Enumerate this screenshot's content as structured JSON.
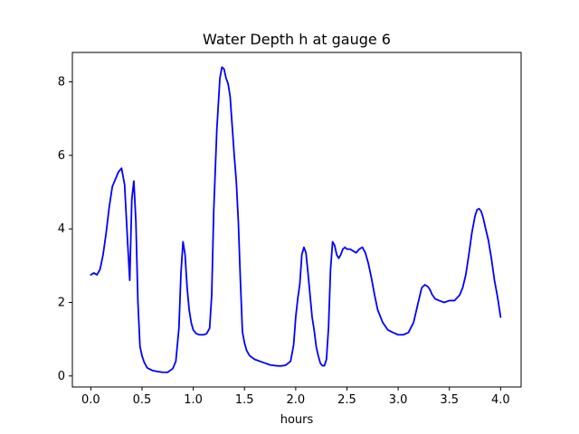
{
  "chart_data": {
    "type": "line",
    "title": "Water Depth h at gauge 6",
    "xlabel": "hours",
    "ylabel": "",
    "xlim": [
      -0.18,
      4.2
    ],
    "ylim": [
      -0.3,
      8.8
    ],
    "xticks": [
      0.0,
      0.5,
      1.0,
      1.5,
      2.0,
      2.5,
      3.0,
      3.5,
      4.0
    ],
    "xtick_labels": [
      "0.0",
      "0.5",
      "1.0",
      "1.5",
      "2.0",
      "2.5",
      "3.0",
      "3.5",
      "4.0"
    ],
    "yticks": [
      0,
      2,
      4,
      6,
      8
    ],
    "ytick_labels": [
      "0",
      "2",
      "4",
      "6",
      "8"
    ],
    "grid": false,
    "legend": "none",
    "series": [
      {
        "color": "#0000ff",
        "x": [
          0.0,
          0.03,
          0.06,
          0.09,
          0.12,
          0.15,
          0.18,
          0.21,
          0.24,
          0.27,
          0.3,
          0.33,
          0.36,
          0.38,
          0.4,
          0.42,
          0.44,
          0.46,
          0.48,
          0.5,
          0.52,
          0.55,
          0.6,
          0.65,
          0.7,
          0.75,
          0.8,
          0.83,
          0.86,
          0.88,
          0.9,
          0.92,
          0.94,
          0.96,
          0.98,
          1.0,
          1.03,
          1.06,
          1.1,
          1.13,
          1.16,
          1.18,
          1.2,
          1.23,
          1.26,
          1.28,
          1.3,
          1.32,
          1.34,
          1.36,
          1.38,
          1.4,
          1.42,
          1.44,
          1.46,
          1.48,
          1.5,
          1.52,
          1.55,
          1.6,
          1.65,
          1.7,
          1.75,
          1.8,
          1.85,
          1.9,
          1.95,
          1.98,
          2.0,
          2.02,
          2.04,
          2.06,
          2.08,
          2.1,
          2.12,
          2.14,
          2.16,
          2.18,
          2.2,
          2.22,
          2.24,
          2.26,
          2.28,
          2.3,
          2.32,
          2.34,
          2.36,
          2.38,
          2.4,
          2.42,
          2.44,
          2.46,
          2.48,
          2.5,
          2.53,
          2.56,
          2.59,
          2.62,
          2.65,
          2.68,
          2.71,
          2.74,
          2.77,
          2.8,
          2.85,
          2.9,
          2.95,
          3.0,
          3.05,
          3.1,
          3.15,
          3.2,
          3.23,
          3.26,
          3.29,
          3.31,
          3.33,
          3.36,
          3.4,
          3.45,
          3.5,
          3.55,
          3.6,
          3.63,
          3.66,
          3.69,
          3.72,
          3.75,
          3.77,
          3.79,
          3.81,
          3.83,
          3.85,
          3.88,
          3.91,
          3.94,
          3.97,
          4.0
        ],
        "y": [
          2.75,
          2.8,
          2.75,
          2.9,
          3.3,
          3.9,
          4.6,
          5.15,
          5.35,
          5.55,
          5.65,
          5.2,
          3.6,
          2.6,
          4.8,
          5.3,
          4.2,
          2.0,
          0.8,
          0.55,
          0.38,
          0.22,
          0.15,
          0.12,
          0.1,
          0.1,
          0.2,
          0.4,
          1.3,
          2.8,
          3.65,
          3.3,
          2.4,
          1.8,
          1.45,
          1.25,
          1.15,
          1.12,
          1.12,
          1.15,
          1.3,
          2.2,
          4.5,
          6.7,
          8.1,
          8.4,
          8.35,
          8.1,
          7.95,
          7.6,
          6.8,
          6.0,
          5.3,
          4.2,
          2.6,
          1.2,
          0.9,
          0.7,
          0.55,
          0.45,
          0.4,
          0.35,
          0.3,
          0.28,
          0.27,
          0.29,
          0.4,
          0.85,
          1.6,
          2.1,
          2.5,
          3.3,
          3.5,
          3.35,
          2.8,
          2.2,
          1.6,
          1.25,
          0.8,
          0.55,
          0.35,
          0.28,
          0.28,
          0.45,
          1.3,
          2.9,
          3.65,
          3.55,
          3.3,
          3.2,
          3.3,
          3.45,
          3.5,
          3.45,
          3.45,
          3.4,
          3.35,
          3.45,
          3.5,
          3.35,
          3.05,
          2.65,
          2.2,
          1.8,
          1.45,
          1.25,
          1.18,
          1.12,
          1.12,
          1.18,
          1.45,
          2.05,
          2.4,
          2.48,
          2.43,
          2.35,
          2.22,
          2.1,
          2.05,
          2.0,
          2.05,
          2.05,
          2.2,
          2.4,
          2.75,
          3.3,
          3.9,
          4.35,
          4.52,
          4.55,
          4.48,
          4.3,
          4.05,
          3.7,
          3.2,
          2.6,
          2.15,
          1.6
        ]
      }
    ]
  }
}
